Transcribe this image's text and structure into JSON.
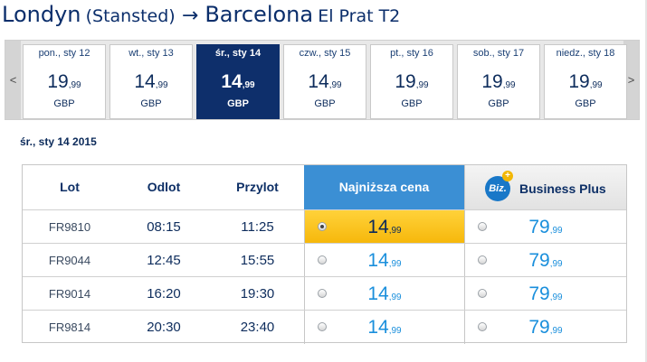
{
  "route": {
    "from_city": "Londyn",
    "from_airport": "(Stansted)",
    "arrow": "→",
    "to_city": "Barcelona",
    "to_airport": "El Prat T2"
  },
  "nav": {
    "prev": "<",
    "next": ">"
  },
  "days": [
    {
      "label": "pon., sty 12",
      "int": "19",
      "dec": ",99",
      "currency": "GBP",
      "selected": false
    },
    {
      "label": "wt., sty 13",
      "int": "14",
      "dec": ",99",
      "currency": "GBP",
      "selected": false
    },
    {
      "label": "śr., sty 14",
      "int": "14",
      "dec": ",99",
      "currency": "GBP",
      "selected": true
    },
    {
      "label": "czw., sty 15",
      "int": "14",
      "dec": ",99",
      "currency": "GBP",
      "selected": false
    },
    {
      "label": "pt., sty 16",
      "int": "19",
      "dec": ",99",
      "currency": "GBP",
      "selected": false
    },
    {
      "label": "sob., sty 17",
      "int": "19",
      "dec": ",99",
      "currency": "GBP",
      "selected": false
    },
    {
      "label": "niedz., sty 18",
      "int": "19",
      "dec": ",99",
      "currency": "GBP",
      "selected": false
    }
  ],
  "selected_date": "śr., sty 14 2015",
  "table": {
    "headers": {
      "flight": "Lot",
      "departure": "Odlot",
      "arrival": "Przylot",
      "lowest": "Najniższa cena",
      "business": "Business Plus",
      "biz_badge": "Biz."
    },
    "rows": [
      {
        "flight": "FR9810",
        "dep": "08:15",
        "arr": "11:25",
        "low_int": "14",
        "low_dec": ",99",
        "biz_int": "79",
        "biz_dec": ",99",
        "low_selected": true
      },
      {
        "flight": "FR9044",
        "dep": "12:45",
        "arr": "15:55",
        "low_int": "14",
        "low_dec": ",99",
        "biz_int": "79",
        "biz_dec": ",99",
        "low_selected": false
      },
      {
        "flight": "FR9014",
        "dep": "16:20",
        "arr": "19:30",
        "low_int": "14",
        "low_dec": ",99",
        "biz_int": "79",
        "biz_dec": ",99",
        "low_selected": false
      },
      {
        "flight": "FR9814",
        "dep": "20:30",
        "arr": "23:40",
        "low_int": "14",
        "low_dec": ",99",
        "biz_int": "79",
        "biz_dec": ",99",
        "low_selected": false
      }
    ]
  },
  "colors": {
    "navy": "#0e2f6b",
    "lowest_header": "#3b8fd4",
    "price_blue": "#1a8fdc",
    "chosen_fare": "#f6b70a"
  }
}
